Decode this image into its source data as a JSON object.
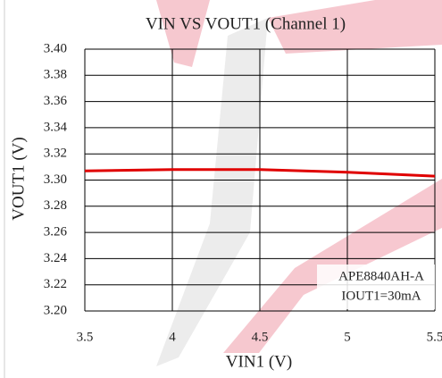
{
  "chart_data": {
    "type": "line",
    "title": "VIN  VS VOUT1 (Channel 1)",
    "x_label": "VIN1 (V)",
    "y_label": "VOUT1 (V)",
    "annotations": [
      "APE8840AH-A",
      "IOUT1=30mA"
    ],
    "x": [
      3.5,
      4,
      4.5,
      5,
      5.5
    ],
    "series": [
      {
        "name": "VOUT1",
        "color": "#e00000",
        "values": [
          3.307,
          3.308,
          3.308,
          3.306,
          3.303
        ]
      }
    ],
    "xlim": [
      3.5,
      5.5
    ],
    "xticks": [
      3.5,
      4,
      4.5,
      5,
      5.5
    ],
    "ylim": [
      3.2,
      3.4
    ],
    "yticks": [
      {
        "value": 3.2,
        "label": "3.20"
      },
      3.22,
      3.24,
      3.26,
      3.28,
      {
        "value": 3.3,
        "label": "3.30"
      },
      3.32,
      3.34,
      3.36,
      3.38,
      {
        "value": 3.4,
        "label": "3.40"
      }
    ],
    "grid": true
  }
}
